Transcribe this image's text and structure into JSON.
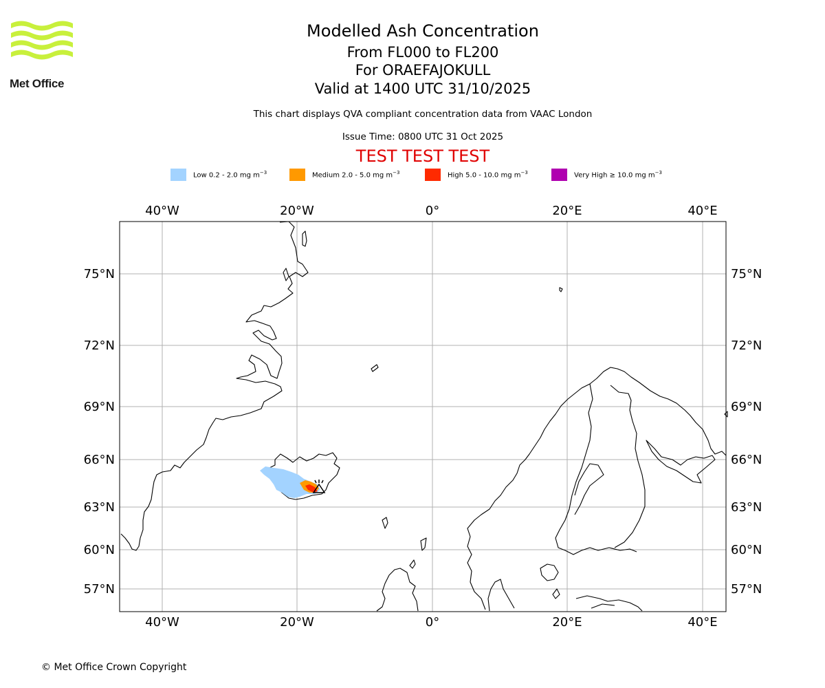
{
  "header": {
    "title": "Modelled Ash Concentration",
    "levels": "From FL000 to FL200",
    "volcano": "For ORAEFAJOKULL",
    "valid": "Valid at 1400 UTC 31/10/2025",
    "description": "This chart displays QVA compliant concentration data from VAAC London",
    "issue_time": "Issue Time: 0800 UTC 31 Oct 2025",
    "test_banner": "TEST TEST TEST"
  },
  "logo": {
    "text": "Met Office",
    "icon": "met-office-wave-logo"
  },
  "legend": [
    {
      "label": "Low 0.2 - 2.0 mg m",
      "unit_exp": "−3",
      "color": "#a3d3ff"
    },
    {
      "label": "Medium 2.0 - 5.0 mg m",
      "unit_exp": "−3",
      "color": "#ff9900"
    },
    {
      "label": "High 5.0 - 10.0 mg m",
      "unit_exp": "−3",
      "color": "#ff2a00"
    },
    {
      "label": "Very High  ≥  10.0 mg m",
      "unit_exp": "−3",
      "color": "#b000b0"
    }
  ],
  "map": {
    "lon_labels": [
      "40°W",
      "20°W",
      "0°",
      "20°E",
      "40°E"
    ],
    "lat_labels": [
      "75°N",
      "72°N",
      "69°N",
      "66°N",
      "63°N",
      "60°N",
      "57°N"
    ],
    "volcano_marker": "volcano-triangle-icon"
  },
  "footer": {
    "copyright": "© Met Office Crown Copyright"
  }
}
